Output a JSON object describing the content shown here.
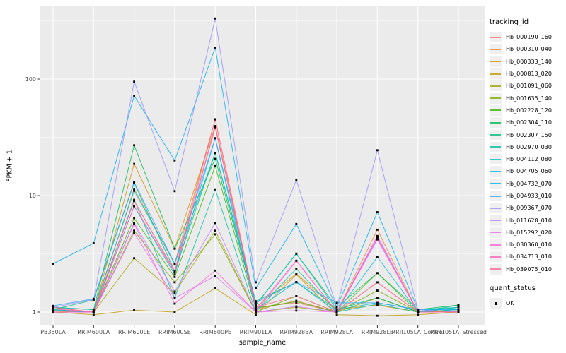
{
  "figure": {
    "x_axis": {
      "title": "sample_name"
    },
    "y_axis": {
      "title": "FPKM + 1"
    },
    "legend": {
      "color_title": "tracking_id",
      "shape_title": "quant_status",
      "shape_item_label": "OK"
    },
    "colors": {
      "panel_bg": "#EBEBEB",
      "grid": "#FFFFFF",
      "tick_text": "#4D4D4D",
      "tick_mark": "#333333",
      "point": "#000000",
      "legend_key_bg": "#EFEFEF"
    }
  },
  "chart_data": {
    "type": "line",
    "title": "",
    "xlabel": "sample_name",
    "ylabel": "FPKM + 1",
    "y_scale": "log10",
    "y_ticks": [
      1,
      10,
      100
    ],
    "y_minor_ticks": [
      3.1623,
      31.623,
      316.23
    ],
    "ylim": [
      0.85,
      430
    ],
    "grid": "on",
    "legend_position": "right",
    "point_shape": "filled-square",
    "quant_status_label": "OK",
    "categories": [
      "PB350LA",
      "RRIM600LA",
      "RRIM600LE",
      "RRIM600SE",
      "RRIM600PE",
      "RRIM901LA",
      "RRIM928BA",
      "RRIM928LA",
      "RRIM928LE",
      "RRII105LA_Control",
      "RRII105LA_Stressed"
    ],
    "series": [
      {
        "name": "Hb_000190_160",
        "color": "#F8766D",
        "values": [
          1.1,
          1.0,
          9.0,
          2.2,
          38.0,
          1.1,
          1.2,
          1.0,
          1.8,
          1.0,
          1.02
        ]
      },
      {
        "name": "Hb_000310_040",
        "color": "#EA8331",
        "values": [
          1.05,
          1.0,
          11.4,
          2.6,
          45.0,
          1.05,
          1.25,
          1.0,
          5.1,
          1.0,
          1.02
        ]
      },
      {
        "name": "Hb_000333_140",
        "color": "#D89000",
        "values": [
          1.02,
          1.0,
          18.7,
          3.5,
          39.6,
          1.1,
          2.14,
          1.05,
          1.15,
          1.0,
          1.02
        ]
      },
      {
        "name": "Hb_000813_020",
        "color": "#C09B00",
        "values": [
          1.0,
          0.95,
          1.04,
          1.0,
          1.6,
          0.95,
          2.1,
          0.95,
          0.93,
          0.95,
          1.0
        ]
      },
      {
        "name": "Hb_001091_060",
        "color": "#A3A500",
        "values": [
          1.0,
          1.0,
          2.9,
          1.46,
          5.0,
          1.0,
          1.1,
          1.0,
          1.32,
          1.0,
          1.05
        ]
      },
      {
        "name": "Hb_001635_140",
        "color": "#7CAE00",
        "values": [
          1.0,
          1.0,
          5.0,
          1.8,
          4.65,
          1.0,
          1.37,
          1.0,
          1.53,
          1.0,
          1.05
        ]
      },
      {
        "name": "Hb_002228_120",
        "color": "#39B600",
        "values": [
          1.05,
          1.0,
          6.4,
          2.0,
          17.9,
          1.08,
          1.23,
          1.0,
          2.16,
          1.0,
          1.1
        ]
      },
      {
        "name": "Hb_002304_110",
        "color": "#00BB4E",
        "values": [
          1.1,
          1.05,
          27.0,
          3.5,
          20.7,
          1.15,
          3.17,
          1.1,
          2.16,
          1.05,
          1.15
        ]
      },
      {
        "name": "Hb_002307_150",
        "color": "#00BF7D",
        "values": [
          1.05,
          1.27,
          12.9,
          2.25,
          23.2,
          1.24,
          1.8,
          1.05,
          1.33,
          1.0,
          1.15
        ]
      },
      {
        "name": "Hb_002970_030",
        "color": "#00C1A3",
        "values": [
          1.03,
          1.0,
          9.2,
          1.32,
          11.3,
          1.0,
          2.36,
          1.0,
          1.17,
          1.0,
          1.1
        ]
      },
      {
        "name": "Hb_004112_080",
        "color": "#00BFC4",
        "values": [
          1.1,
          1.05,
          11.0,
          2.6,
          23.2,
          1.15,
          3.17,
          1.05,
          1.2,
          1.05,
          1.1
        ]
      },
      {
        "name": "Hb_004705_060",
        "color": "#00BAE0",
        "values": [
          1.05,
          1.0,
          8.1,
          2.1,
          31.0,
          1.05,
          1.81,
          1.0,
          2.97,
          1.0,
          1.05
        ]
      },
      {
        "name": "Hb_004732_070",
        "color": "#00B0F6",
        "values": [
          2.6,
          3.9,
          72.0,
          20.0,
          186.0,
          1.6,
          5.7,
          1.1,
          7.2,
          1.05,
          1.05
        ]
      },
      {
        "name": "Hb_004933_010",
        "color": "#35A2FF",
        "values": [
          1.13,
          1.3,
          13.0,
          2.6,
          31.1,
          1.2,
          1.81,
          1.2,
          1.2,
          1.05,
          1.0
        ]
      },
      {
        "name": "Hb_009367_070",
        "color": "#9590FF",
        "values": [
          1.1,
          1.28,
          95.0,
          10.9,
          331.0,
          1.8,
          13.6,
          1.1,
          24.5,
          1.05,
          1.0
        ]
      },
      {
        "name": "Hb_011628_010",
        "color": "#C77CFF",
        "values": [
          1.0,
          1.0,
          5.8,
          1.5,
          5.8,
          1.0,
          1.12,
          1.0,
          4.2,
          1.0,
          1.0
        ]
      },
      {
        "name": "Hb_015292_020",
        "color": "#E76BF3",
        "values": [
          1.0,
          1.0,
          4.8,
          1.32,
          2.04,
          1.0,
          1.03,
          1.0,
          4.3,
          1.0,
          1.0
        ]
      },
      {
        "name": "Hb_030360_010",
        "color": "#FA62DB",
        "values": [
          1.0,
          1.0,
          5.7,
          1.18,
          2.27,
          1.0,
          2.76,
          1.0,
          4.5,
          1.0,
          1.0
        ]
      },
      {
        "name": "Hb_034713_010",
        "color": "#FF62BC",
        "values": [
          1.07,
          1.0,
          8.1,
          2.2,
          39.6,
          1.05,
          2.76,
          1.0,
          4.4,
          1.0,
          1.0
        ]
      },
      {
        "name": "Hb_039075_010",
        "color": "#FF6A98",
        "values": [
          1.1,
          1.0,
          9.0,
          2.25,
          45.2,
          1.1,
          1.37,
          1.0,
          1.8,
          1.0,
          1.0
        ]
      }
    ]
  }
}
